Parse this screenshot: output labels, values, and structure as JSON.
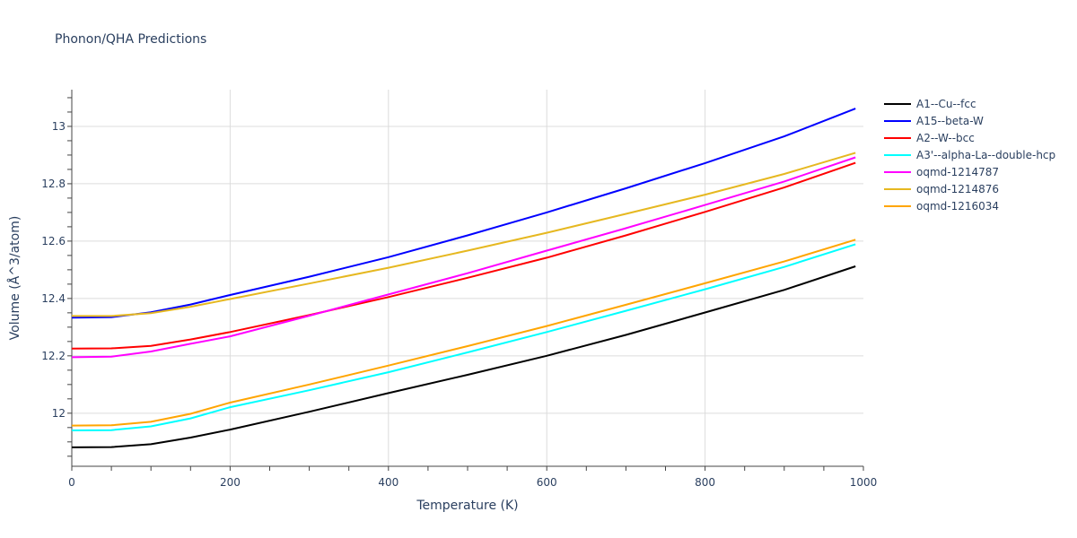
{
  "chart_data": {
    "type": "line",
    "title": "Phonon/QHA Predictions",
    "xlabel": "Temperature (K)",
    "ylabel": "Volume (Å^3/atom)",
    "xlim": [
      0,
      1000
    ],
    "ylim": [
      11.815,
      13.128
    ],
    "x_ticks": [
      0,
      200,
      400,
      600,
      800,
      1000
    ],
    "y_ticks": [
      12,
      12.2,
      12.4,
      12.6,
      12.8,
      13
    ],
    "grid": true,
    "legend_position": "right",
    "x": [
      0,
      50,
      100,
      150,
      200,
      300,
      400,
      500,
      600,
      700,
      800,
      900,
      990
    ],
    "series": [
      {
        "name": "A1--Cu--fcc",
        "color": "#000000",
        "values": [
          11.881,
          11.882,
          11.892,
          11.915,
          11.943,
          12.005,
          12.07,
          12.134,
          12.2,
          12.273,
          12.351,
          12.43,
          12.512
        ]
      },
      {
        "name": "A15--beta-W",
        "color": "#0000ff",
        "values": [
          12.333,
          12.335,
          12.352,
          12.379,
          12.412,
          12.476,
          12.544,
          12.62,
          12.7,
          12.784,
          12.872,
          12.965,
          13.062
        ]
      },
      {
        "name": "A2--W--bcc",
        "color": "#ff0000",
        "values": [
          12.225,
          12.226,
          12.235,
          12.257,
          12.283,
          12.342,
          12.405,
          12.472,
          12.542,
          12.62,
          12.702,
          12.787,
          12.873
        ]
      },
      {
        "name": "A3'--alpha-La--double-hcp",
        "color": "#00ffff",
        "values": [
          11.94,
          11.941,
          11.954,
          11.982,
          12.021,
          12.08,
          12.143,
          12.212,
          12.283,
          12.357,
          12.432,
          12.51,
          12.589
        ]
      },
      {
        "name": "oqmd-1214787",
        "color": "#ff00ff",
        "values": [
          12.195,
          12.197,
          12.215,
          12.242,
          12.268,
          12.34,
          12.414,
          12.488,
          12.567,
          12.645,
          12.726,
          12.808,
          12.892
        ]
      },
      {
        "name": "oqmd-1214876",
        "color": "#e6b820",
        "values": [
          12.339,
          12.339,
          12.349,
          12.371,
          12.398,
          12.452,
          12.507,
          12.567,
          12.629,
          12.695,
          12.762,
          12.834,
          12.908
        ]
      },
      {
        "name": "oqmd-1216034",
        "color": "#ffa500",
        "values": [
          11.957,
          11.958,
          11.97,
          11.998,
          12.037,
          12.1,
          12.166,
          12.234,
          12.304,
          12.378,
          12.453,
          12.529,
          12.605
        ]
      }
    ]
  }
}
